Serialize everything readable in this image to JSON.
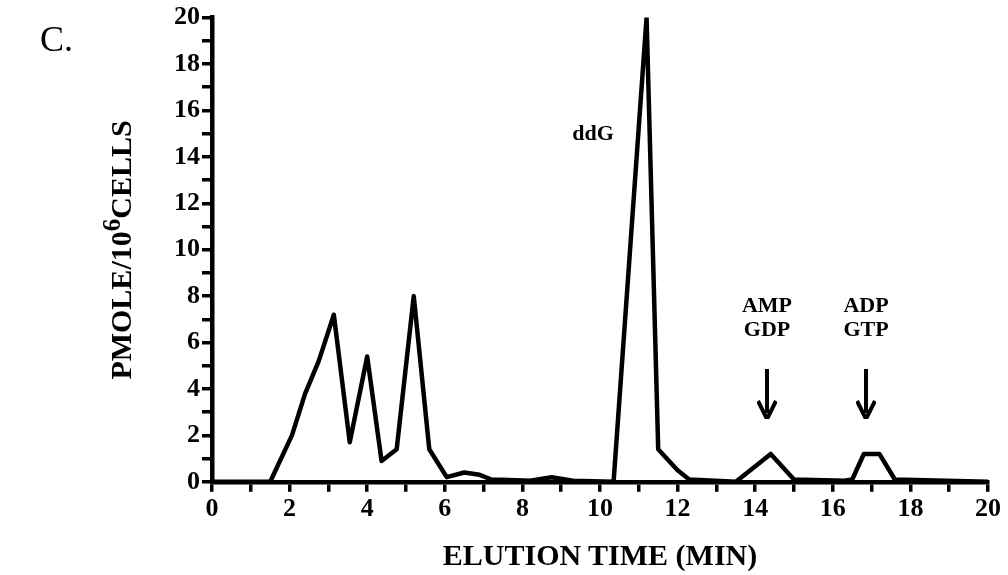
{
  "chart_data": {
    "type": "line",
    "title": "C.",
    "xlabel": "ELUTION TIME (MIN)",
    "ylabel": "PMOLE/10$^{6}$CELLS",
    "x": [
      0,
      1.5,
      2.06,
      2.4,
      2.75,
      3.14,
      3.55,
      4.0,
      4.37,
      4.76,
      5.2,
      5.6,
      6.05,
      6.5,
      6.9,
      7.2,
      8.2,
      8.75,
      9.3,
      10.35,
      11.2,
      11.5,
      12.0,
      12.3,
      13.5,
      14.4,
      15.0,
      16.3,
      16.5,
      16.8,
      17.2,
      17.6,
      20.0
    ],
    "series": [
      {
        "color": "#000000",
        "values": [
          0,
          0,
          2.0,
          3.8,
          5.2,
          7.2,
          1.7,
          5.4,
          0.9,
          1.4,
          8.0,
          1.4,
          0.2,
          0.4,
          0.3,
          0.1,
          0.05,
          0.2,
          0.05,
          0,
          20,
          1.4,
          0.5,
          0.1,
          0,
          1.2,
          0.1,
          0.05,
          0.1,
          1.2,
          1.2,
          0.1,
          0
        ]
      }
    ],
    "xlim": [
      0,
      20
    ],
    "ylim": [
      0,
      20
    ],
    "xticks": [
      0,
      {
        "value": 1,
        "label": null
      },
      2,
      {
        "value": 3,
        "label": null
      },
      4,
      {
        "value": 5,
        "label": null
      },
      6,
      {
        "value": 7,
        "label": null
      },
      8,
      {
        "value": 9,
        "label": null
      },
      10,
      {
        "value": 11,
        "label": null
      },
      12,
      {
        "value": 13,
        "label": null
      },
      14,
      {
        "value": 15,
        "label": null
      },
      16,
      {
        "value": 17,
        "label": null
      },
      18,
      {
        "value": 19,
        "label": null
      },
      20
    ],
    "yticks": [
      0,
      {
        "value": 1,
        "label": null
      },
      2,
      {
        "value": 3,
        "label": null
      },
      4,
      {
        "value": 5,
        "label": null
      },
      6,
      {
        "value": 7,
        "label": null
      },
      8,
      {
        "value": 9,
        "label": null
      },
      10,
      {
        "value": 11,
        "label": null
      },
      12,
      {
        "value": 13,
        "label": null
      },
      14,
      {
        "value": 15,
        "label": null
      },
      16,
      {
        "value": 17,
        "label": null
      },
      18,
      {
        "value": 19,
        "label": null
      },
      20
    ],
    "annotations": [
      "ddG",
      "AMP\nGDP",
      "ADP\nGTP"
    ],
    "grid": false,
    "legend": false,
    "marker": "none",
    "line_style": "solid"
  }
}
